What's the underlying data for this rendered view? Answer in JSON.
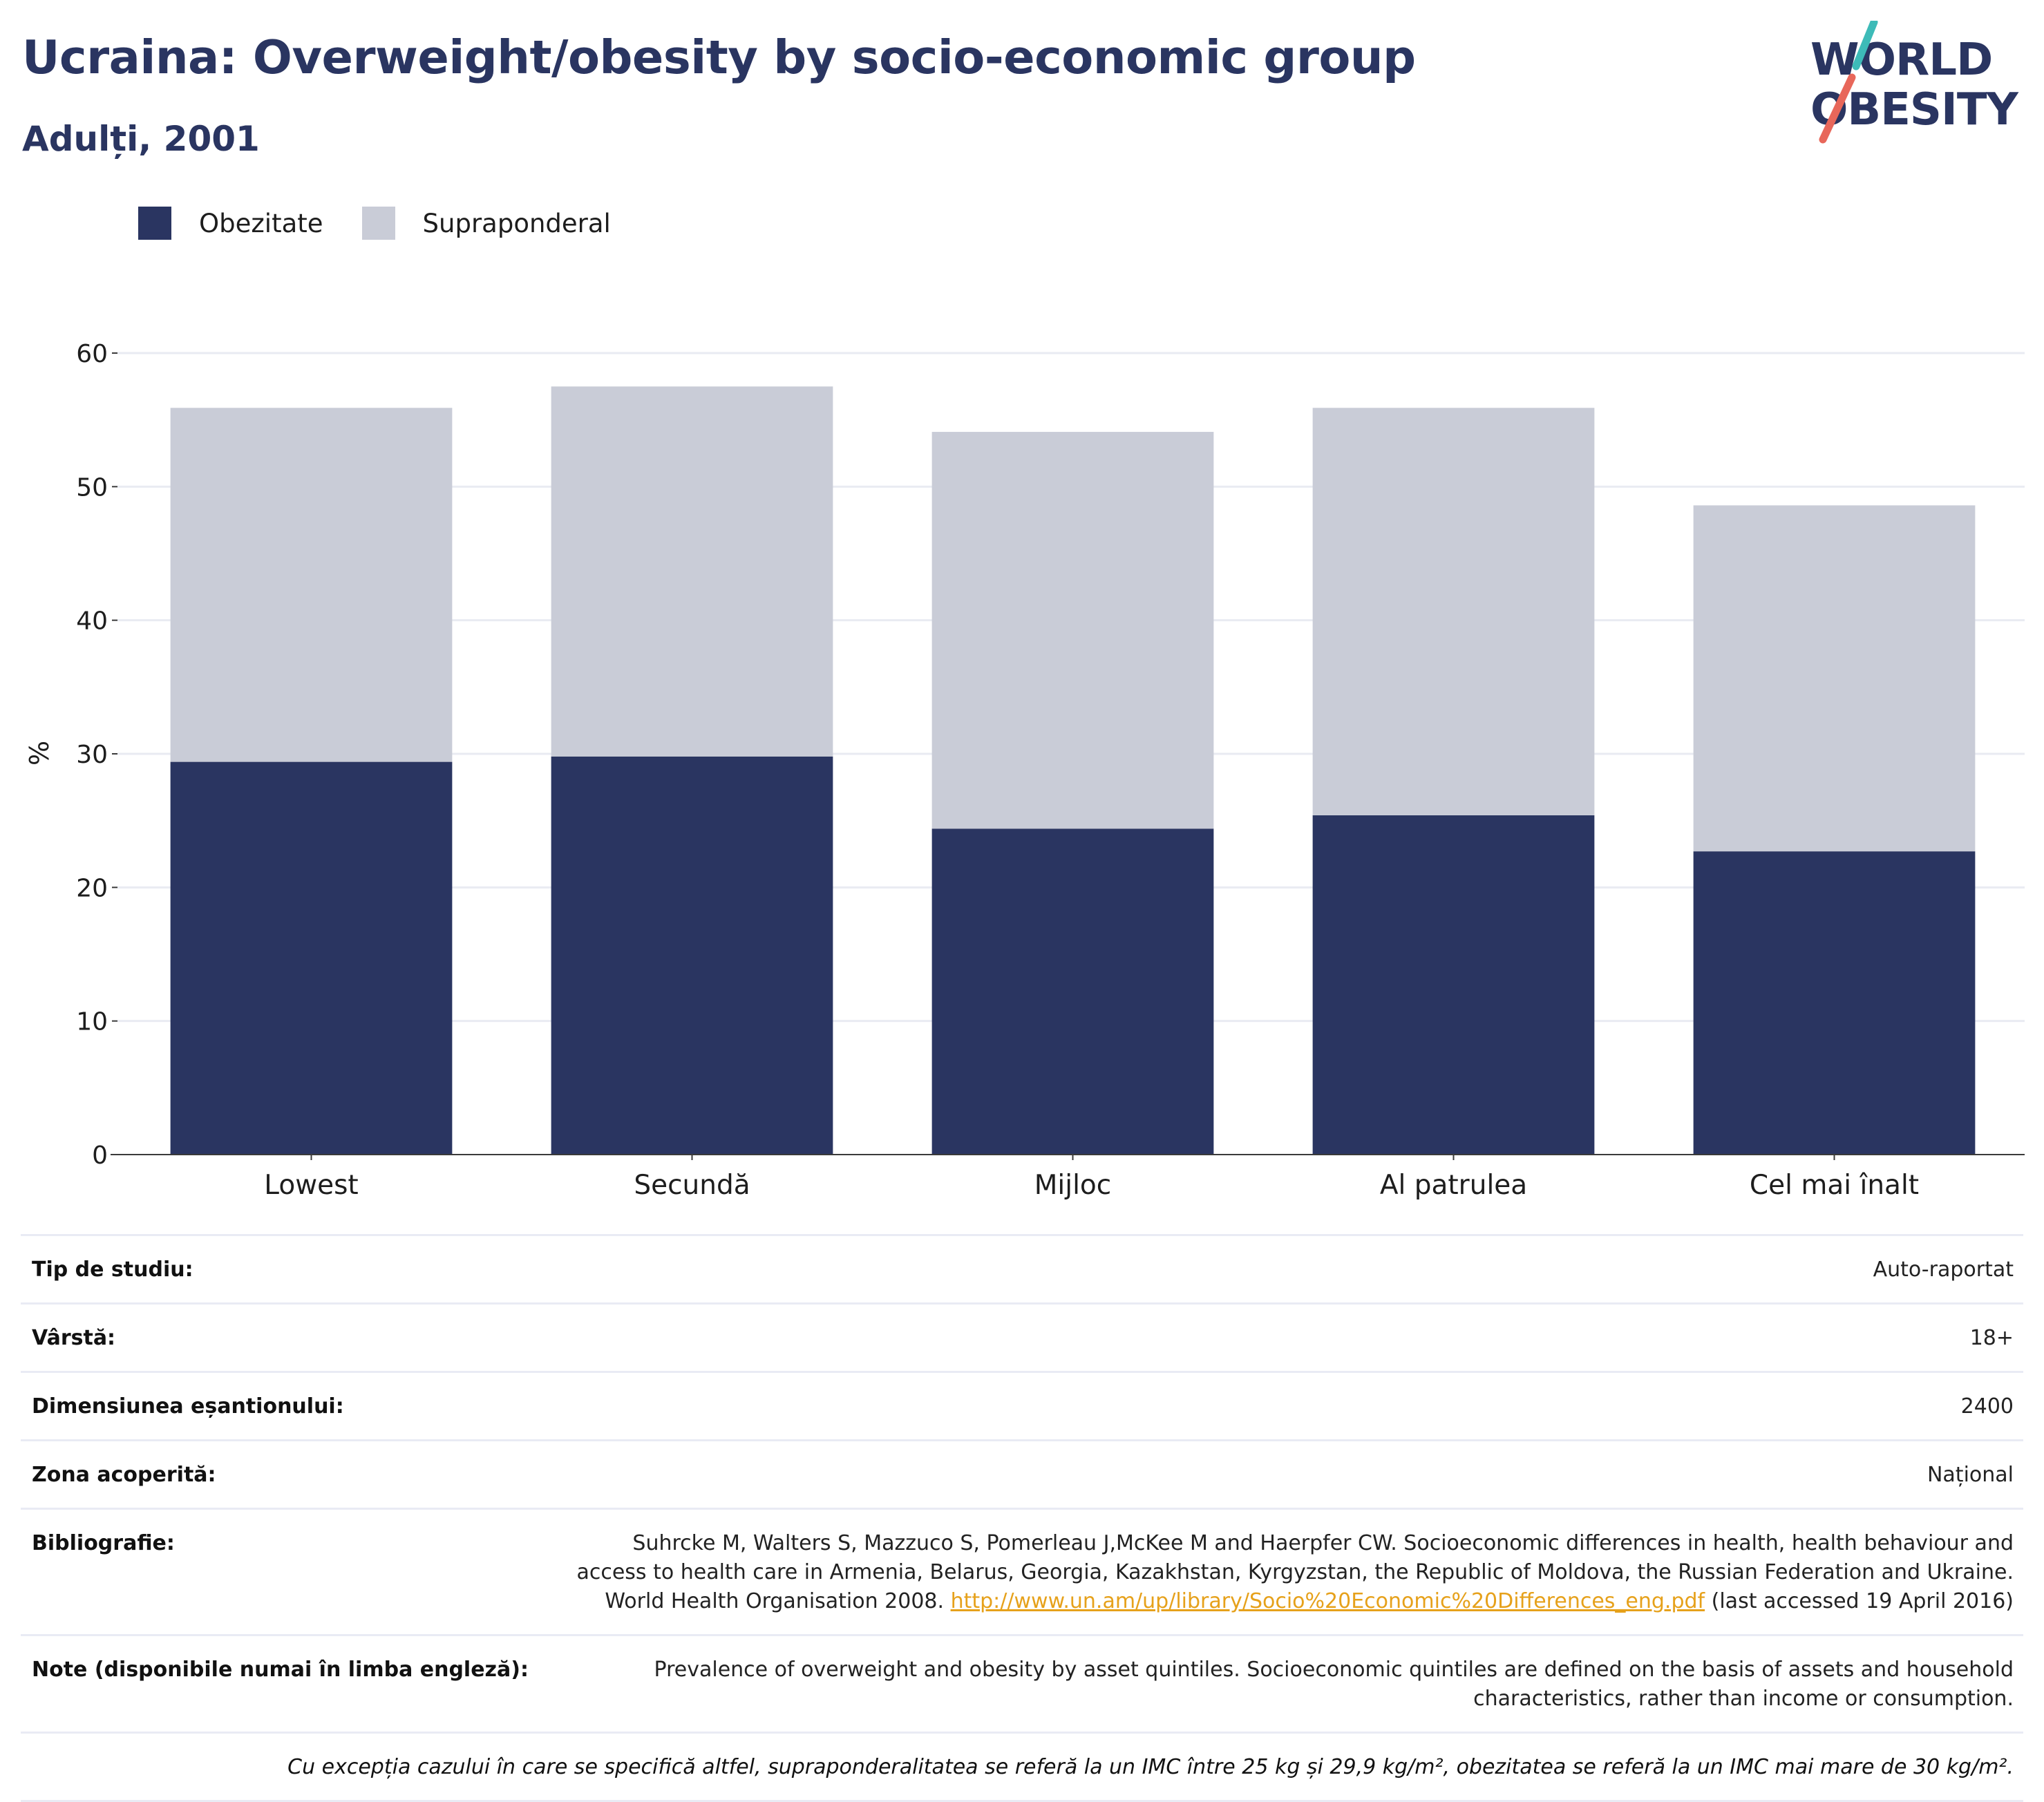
{
  "header": {
    "title": "Ucraina: Overweight/obesity by socio-economic group",
    "subtitle": "Adulți, 2001"
  },
  "logo": {
    "line1": "WORLD",
    "line2": "OBESITY",
    "accent_colors": [
      "#3dbbb8",
      "#e8675a"
    ]
  },
  "colors": {
    "obesity": "#2a3561",
    "overweight": "#c9ccd7",
    "title": "#2a3561",
    "link": "#e6a11b"
  },
  "chart_data": {
    "type": "bar",
    "stacked": true,
    "categories": [
      "Lowest",
      "Secundă",
      "Mijloc",
      "Al patrulea",
      "Cel mai înalt"
    ],
    "series": [
      {
        "name": "Obezitate",
        "values": [
          29.4,
          29.8,
          24.4,
          25.4,
          22.7
        ]
      },
      {
        "name": "Supraponderal",
        "values": [
          26.5,
          27.7,
          29.7,
          30.5,
          25.9
        ]
      }
    ],
    "ylabel": "%",
    "ylim": [
      0,
      60
    ],
    "yticks": [
      0,
      10,
      20,
      30,
      40,
      50,
      60
    ],
    "grid": true,
    "legend_position": "top-left"
  },
  "info": {
    "rows": [
      {
        "key": "Tip de studiu:",
        "value": "Auto-raportat"
      },
      {
        "key": "Vârstă:",
        "value": "18+"
      },
      {
        "key": "Dimensiunea eșantionului:",
        "value": "2400"
      },
      {
        "key": "Zona acoperită:",
        "value": "Național"
      }
    ],
    "bibliography": {
      "key": "Bibliografie:",
      "text_before": "Suhrcke M, Walters S, Mazzuco S, Pomerleau J,McKee M and Haerpfer CW. Socioeconomic differences in health, health behaviour and access to health care in Armenia, Belarus, Georgia, Kazakhstan, Kyrgyzstan, the Republic of Moldova, the Russian Federation and Ukraine. World Health Organisation 2008. ",
      "link": "http://www.un.am/up/library/Socio%20Economic%20Differences_eng.pdf",
      "text_after": " (last accessed 19 April 2016)"
    },
    "notes": {
      "key": "Note (disponibile numai în limba engleză):",
      "value": "Prevalence of overweight and obesity by asset quintiles. Socioeconomic quintiles are defined on the basis of assets and household characteristics, rather than income or consumption."
    },
    "footnote": "Cu excepția cazului în care se specifică altfel, supraponderalitatea se referă la un IMC între 25 kg și 29,9 kg/m², obezitatea se referă la un IMC mai mare de 30 kg/m²."
  }
}
